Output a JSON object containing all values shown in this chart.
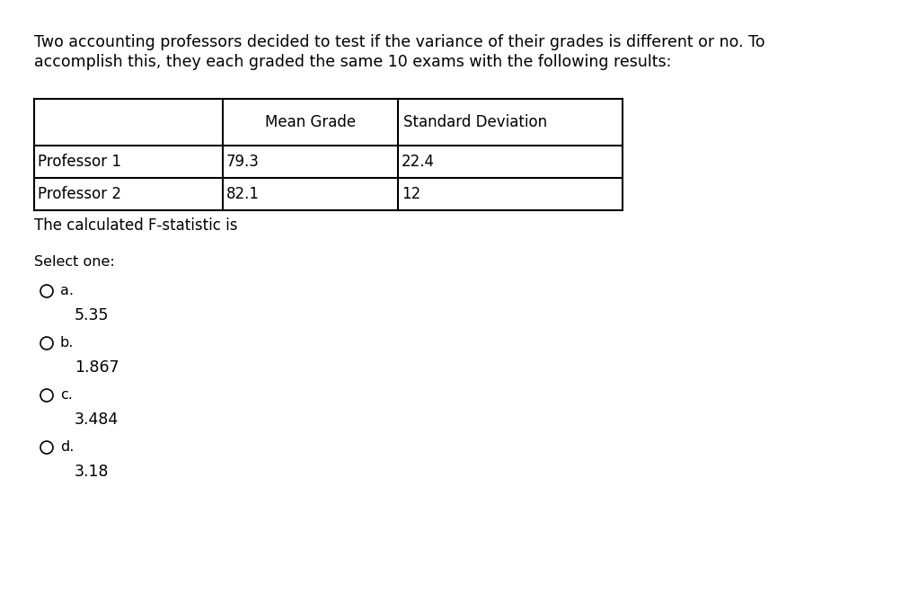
{
  "background_color": "#ffffff",
  "paragraph_text_line1": "Two accounting professors decided to test if the variance of their grades is different or no. To",
  "paragraph_text_line2": "accomplish this, they each graded the same 10 exams with the following results:",
  "paragraph_fontsize": 12.5,
  "table_headers": [
    "",
    "Mean Grade",
    "Standard Deviation"
  ],
  "table_rows": [
    [
      "Professor 1",
      "79.3",
      "22.4"
    ],
    [
      "Professor 2",
      "82.1",
      "12"
    ]
  ],
  "below_table_text": "The calculated F-statistic is",
  "select_one_text": "Select one:",
  "options": [
    {
      "label": "a.",
      "value": "5.35"
    },
    {
      "label": "b.",
      "value": "1.867"
    },
    {
      "label": "c.",
      "value": "3.484"
    },
    {
      "label": "d.",
      "value": "3.18"
    }
  ],
  "text_color": "#000000",
  "table_line_color": "#000000",
  "font_family": "DejaVu Sans",
  "para_fontsize": 12.5,
  "table_header_fontsize": 12,
  "table_cell_fontsize": 12,
  "below_table_fontsize": 12,
  "select_fontsize": 11.5,
  "option_label_fontsize": 11.5,
  "option_value_fontsize": 12.5,
  "fig_width": 10.04,
  "fig_height": 6.8,
  "dpi": 100
}
